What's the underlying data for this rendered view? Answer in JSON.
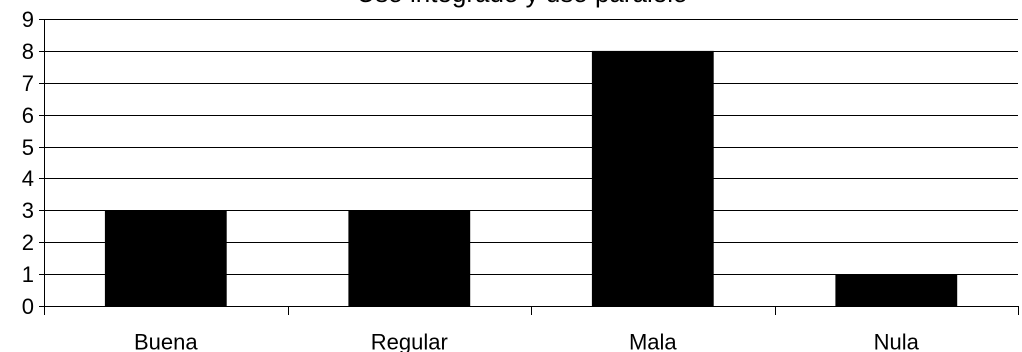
{
  "chart_data": {
    "type": "bar",
    "title": "Uso integrado y uso paralelo",
    "categories": [
      "Buena",
      "Regular",
      "Mala",
      "Nula"
    ],
    "series": [
      {
        "values": [
          3,
          3,
          8,
          1
        ]
      }
    ],
    "xlabel": "",
    "ylabel": "",
    "ylim": [
      0,
      9
    ],
    "yticks": [
      0,
      1,
      2,
      3,
      4,
      5,
      6,
      7,
      8,
      9
    ],
    "grid": true,
    "legend": "none",
    "bar_color": "#000000"
  }
}
